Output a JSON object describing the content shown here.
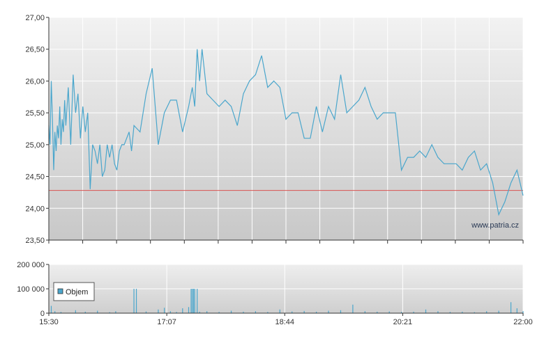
{
  "watermark": "www.patria.cz",
  "colors": {
    "price_line": "#4aa6cc",
    "reference_line": "#d9534f",
    "volume_bar": "#4aa6cc",
    "grid": "#ffffff",
    "plot_bg_top": "#f2f2f2",
    "plot_bg_bottom": "#c8c8c8",
    "axis": "#333333"
  },
  "chart_data": [
    {
      "type": "line",
      "title": "",
      "xlabel": "",
      "ylabel": "",
      "xlim": [
        "15:30",
        "22:00"
      ],
      "ylim": [
        23.5,
        27.0
      ],
      "y_ticks": [
        "23,50",
        "24,00",
        "24,50",
        "25,00",
        "25,50",
        "26,00",
        "26,50",
        "27,00"
      ],
      "y_tick_values": [
        23.5,
        24.0,
        24.5,
        25.0,
        25.5,
        26.0,
        26.5,
        27.0
      ],
      "x_tick_labels": [
        "15:30",
        "17:07",
        "18:44",
        "20:21",
        "22:00"
      ],
      "reference_line": 24.28,
      "grid": true,
      "series": [
        {
          "x": [
            "15:30",
            "15:31",
            "15:32",
            "15:33",
            "15:34",
            "15:35",
            "15:36",
            "15:37",
            "15:38",
            "15:39",
            "15:40",
            "15:41",
            "15:42",
            "15:43",
            "15:44",
            "15:46",
            "15:48",
            "15:50",
            "15:52",
            "15:54",
            "15:56",
            "15:58",
            "16:00",
            "16:02",
            "16:04",
            "16:06",
            "16:08",
            "16:10",
            "16:12",
            "16:14",
            "16:16",
            "16:18",
            "16:20",
            "16:22",
            "16:24",
            "16:26",
            "16:28",
            "16:30",
            "16:32",
            "16:34",
            "16:36",
            "16:38",
            "16:40",
            "16:45",
            "16:50",
            "16:55",
            "17:00",
            "17:05",
            "17:10",
            "17:15",
            "17:20",
            "17:25",
            "17:28",
            "17:30",
            "17:32",
            "17:34",
            "17:36",
            "17:40",
            "17:45",
            "17:50",
            "17:55",
            "18:00",
            "18:05",
            "18:10",
            "18:15",
            "18:20",
            "18:25",
            "18:30",
            "18:35",
            "18:40",
            "18:45",
            "18:50",
            "18:55",
            "19:00",
            "19:05",
            "19:10",
            "19:15",
            "19:20",
            "19:25",
            "19:30",
            "19:35",
            "19:40",
            "19:45",
            "19:50",
            "19:55",
            "20:00",
            "20:05",
            "20:10",
            "20:15",
            "20:20",
            "20:25",
            "20:30",
            "20:35",
            "20:40",
            "20:45",
            "20:50",
            "20:55",
            "21:00",
            "21:05",
            "21:10",
            "21:15",
            "21:20",
            "21:25",
            "21:30",
            "21:35",
            "21:40",
            "21:45",
            "21:50",
            "21:55",
            "22:00"
          ],
          "y": [
            25.3,
            25.0,
            26.0,
            25.4,
            24.6,
            25.2,
            24.9,
            25.3,
            25.1,
            25.6,
            25.0,
            25.4,
            25.2,
            25.7,
            25.3,
            25.9,
            25.0,
            26.1,
            25.5,
            25.8,
            25.1,
            25.6,
            25.2,
            25.5,
            24.3,
            25.0,
            24.9,
            24.7,
            25.0,
            24.5,
            24.6,
            25.0,
            24.8,
            25.0,
            24.7,
            24.6,
            24.9,
            25.0,
            25.0,
            25.1,
            25.2,
            24.9,
            25.3,
            25.2,
            25.8,
            26.2,
            25.0,
            25.5,
            25.7,
            25.7,
            25.2,
            25.6,
            25.9,
            25.6,
            26.5,
            26.0,
            26.5,
            25.8,
            25.7,
            25.6,
            25.7,
            25.6,
            25.3,
            25.8,
            26.0,
            26.1,
            26.4,
            25.9,
            26.0,
            25.9,
            25.4,
            25.5,
            25.5,
            25.1,
            25.1,
            25.6,
            25.2,
            25.6,
            25.4,
            26.1,
            25.5,
            25.6,
            25.7,
            25.9,
            25.6,
            25.4,
            25.5,
            25.5,
            25.5,
            24.6,
            24.8,
            24.8,
            24.9,
            24.8,
            25.0,
            24.8,
            24.7,
            24.7,
            24.7,
            24.6,
            24.8,
            24.9,
            24.6,
            24.7,
            24.4,
            23.9,
            24.1,
            24.4,
            24.6,
            24.2
          ]
        }
      ]
    },
    {
      "type": "bar",
      "title": "",
      "xlabel": "",
      "ylabel": "",
      "xlim": [
        "15:30",
        "22:00"
      ],
      "ylim": [
        0,
        200000
      ],
      "y_ticks": [
        "0",
        "100 000",
        "200 000"
      ],
      "y_tick_values": [
        0,
        100000,
        200000
      ],
      "x_tick_labels": [
        "15:30",
        "17:07",
        "18:44",
        "20:21",
        "22:00"
      ],
      "legend": {
        "position": "left",
        "entries": [
          "Objem"
        ]
      },
      "grid": true,
      "series": [
        {
          "name": "Objem",
          "x": [
            "15:32",
            "15:35",
            "15:40",
            "15:52",
            "16:00",
            "16:10",
            "16:20",
            "16:25",
            "16:40",
            "16:42",
            "16:50",
            "17:00",
            "17:05",
            "17:10",
            "17:15",
            "17:20",
            "17:25",
            "17:27",
            "17:28",
            "17:29",
            "17:30",
            "17:32",
            "17:34",
            "17:40",
            "17:50",
            "18:00",
            "18:10",
            "18:20",
            "18:30",
            "18:40",
            "18:50",
            "19:00",
            "19:10",
            "19:20",
            "19:30",
            "19:40",
            "19:50",
            "20:00",
            "20:10",
            "20:20",
            "20:30",
            "20:40",
            "20:50",
            "21:00",
            "21:10",
            "21:20",
            "21:30",
            "21:40",
            "21:50",
            "21:55",
            "22:00"
          ],
          "values": [
            30000,
            8000,
            5000,
            12000,
            6000,
            10000,
            4000,
            8000,
            100000,
            100000,
            7000,
            15000,
            22000,
            8000,
            5000,
            20000,
            25000,
            100000,
            100000,
            100000,
            100000,
            100000,
            6000,
            8000,
            5000,
            10000,
            6000,
            8000,
            5000,
            15000,
            7000,
            9000,
            6000,
            10000,
            12000,
            35000,
            8000,
            6000,
            7000,
            5000,
            6000,
            15000,
            8000,
            5000,
            6000,
            4000,
            8000,
            10000,
            45000,
            20000,
            8000
          ]
        }
      ]
    }
  ]
}
